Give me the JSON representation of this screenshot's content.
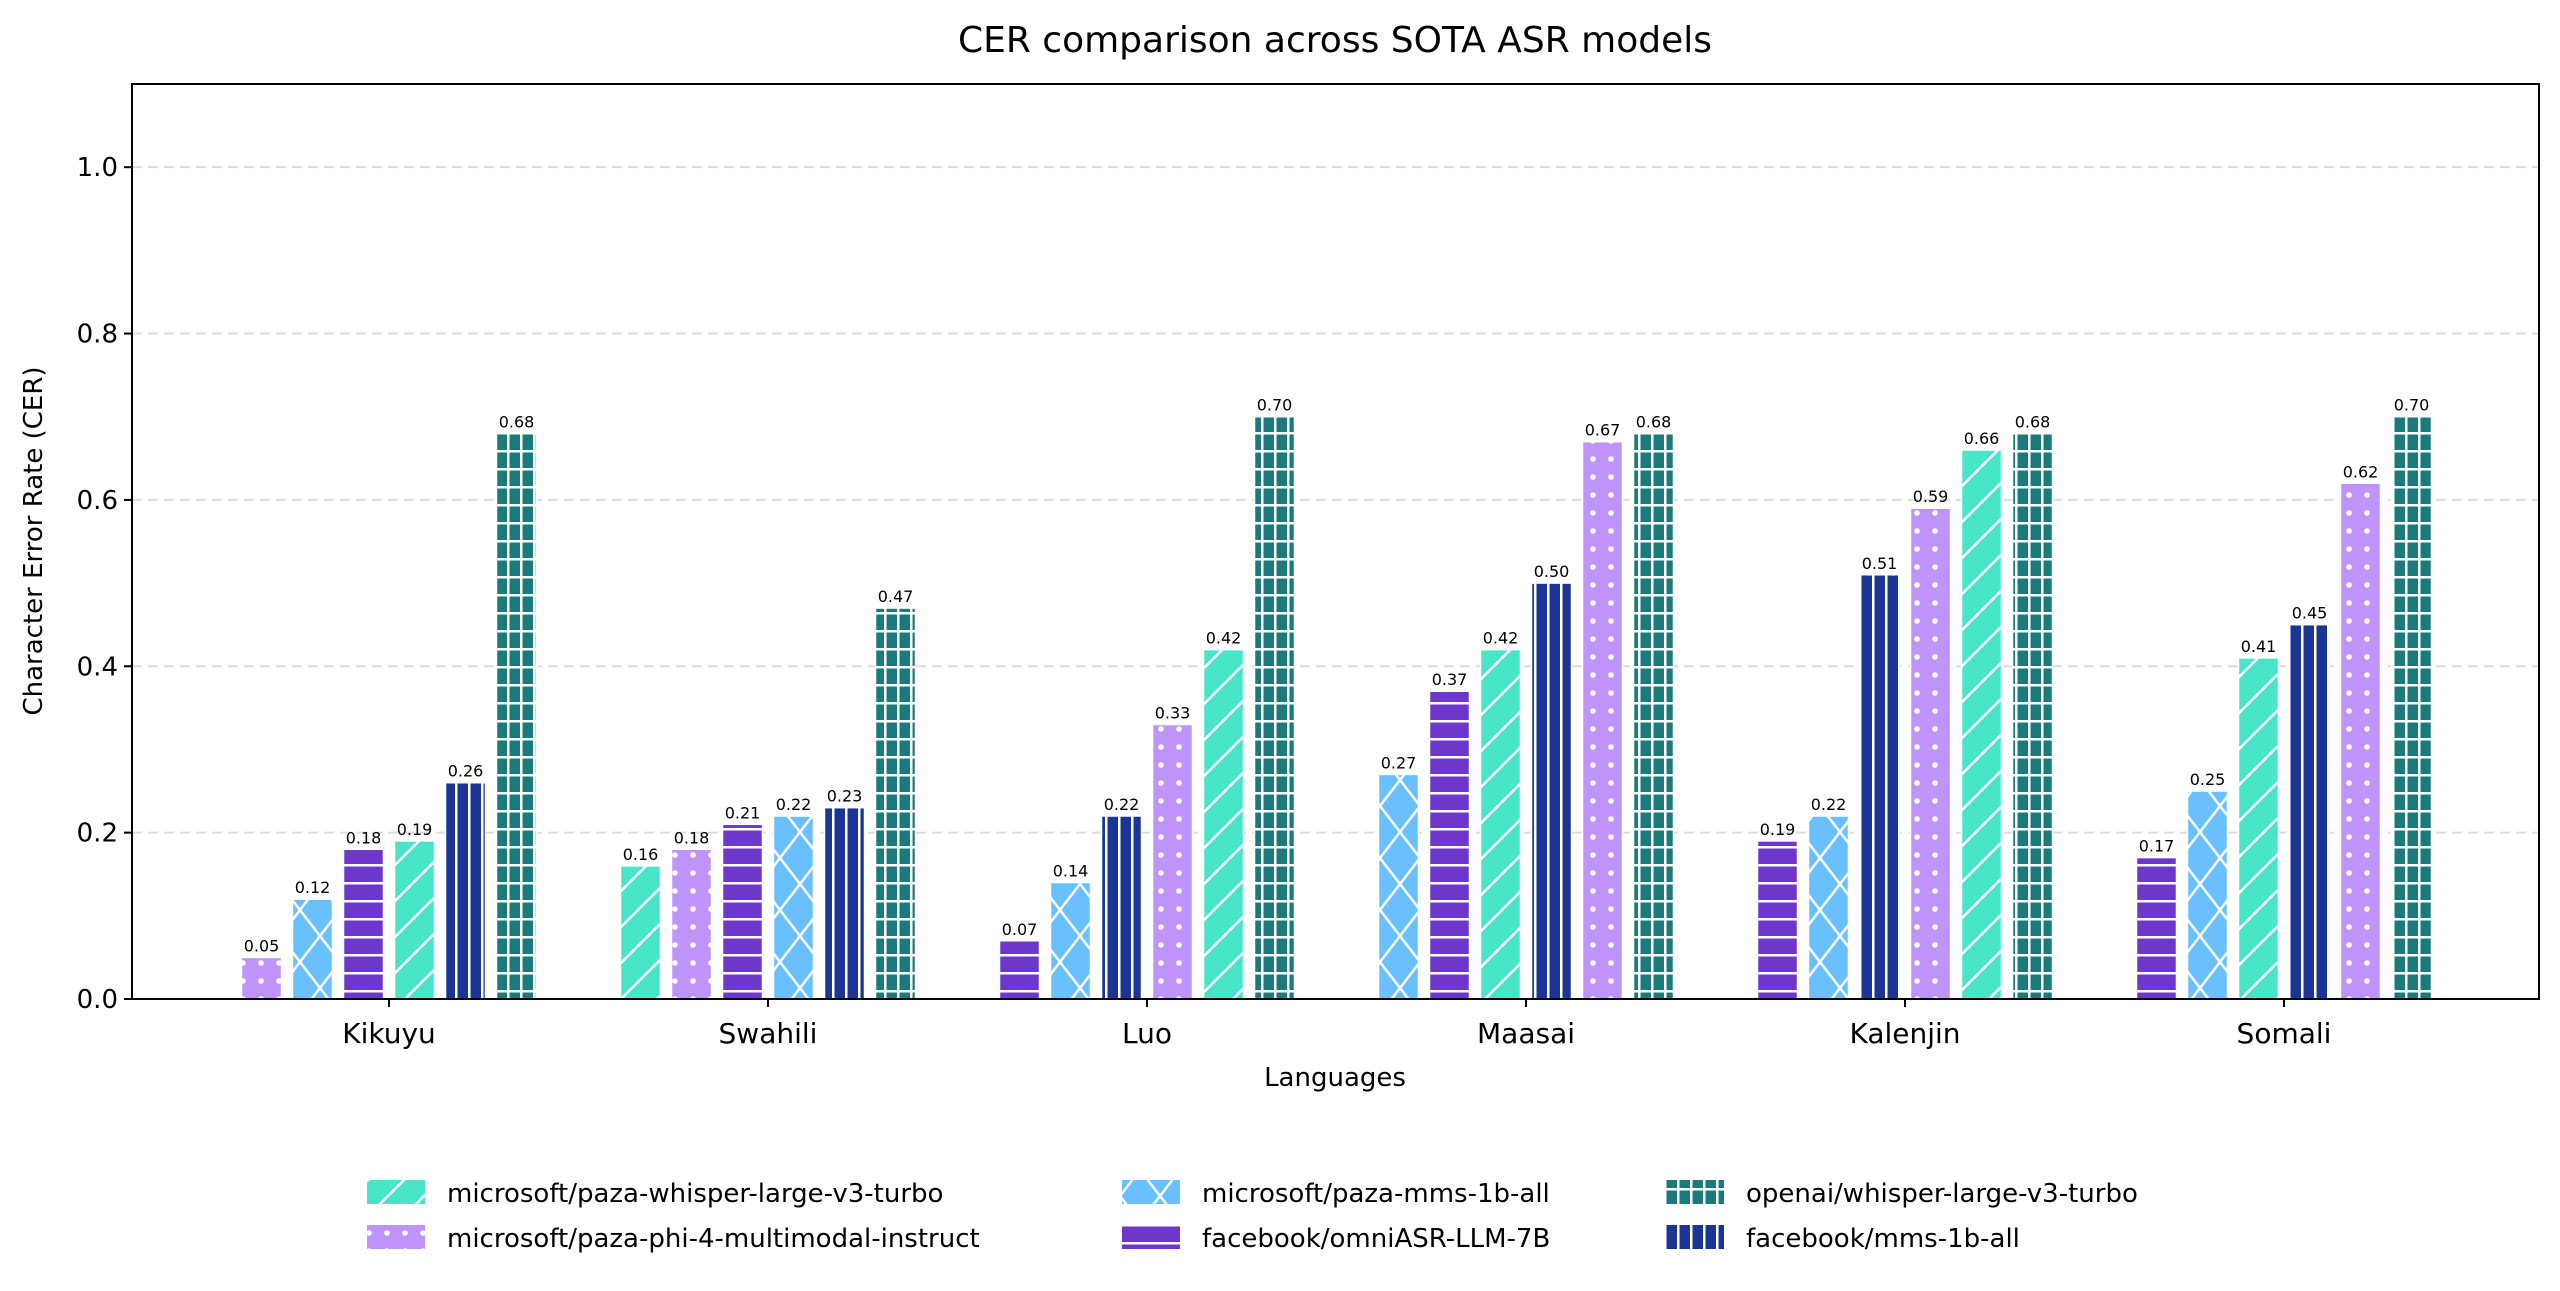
{
  "chart_data": {
    "type": "bar",
    "title": "CER comparison across SOTA ASR models",
    "xlabel": "Languages",
    "ylabel": "Character Error Rate (CER)",
    "ylim": [
      0,
      1.1
    ],
    "yticks": [
      "0.0",
      "0.2",
      "0.4",
      "0.6",
      "0.8",
      "1.0"
    ],
    "grid": "horizontal dashed",
    "legend_placement": "bottom-center",
    "bar_order": "ascending within each language",
    "categories": [
      "Kikuyu",
      "Swahili",
      "Luo",
      "Maasai",
      "Kalenjin",
      "Somali"
    ],
    "series": [
      {
        "name": "microsoft/paza-whisper-large-v3-turbo",
        "color": "#48e5c9",
        "pattern": "diagonal",
        "values": [
          0.19,
          0.16,
          0.42,
          0.42,
          0.66,
          0.41
        ]
      },
      {
        "name": "microsoft/paza-phi-4-multimodal-instruct",
        "color": "#bf94fa",
        "pattern": "dots",
        "values": [
          0.05,
          0.18,
          0.33,
          0.67,
          0.59,
          0.62
        ]
      },
      {
        "name": "microsoft/paza-mms-1b-all",
        "color": "#6ac0ff",
        "pattern": "crosshatch",
        "values": [
          0.12,
          0.22,
          0.14,
          0.27,
          0.22,
          0.25
        ]
      },
      {
        "name": "facebook/omniASR-LLM-7B",
        "color": "#6e37cc",
        "pattern": "horizontal",
        "values": [
          0.18,
          0.21,
          0.07,
          0.37,
          0.19,
          0.17
        ]
      },
      {
        "name": "openai/whisper-large-v3-turbo",
        "color": "#1b7b7b",
        "pattern": "grid",
        "values": [
          0.68,
          0.47,
          0.7,
          0.68,
          0.68,
          0.7
        ]
      },
      {
        "name": "facebook/mms-1b-all",
        "color": "#1a3594",
        "pattern": "vertical",
        "values": [
          0.26,
          0.23,
          0.22,
          0.5,
          0.51,
          0.45
        ]
      }
    ]
  }
}
